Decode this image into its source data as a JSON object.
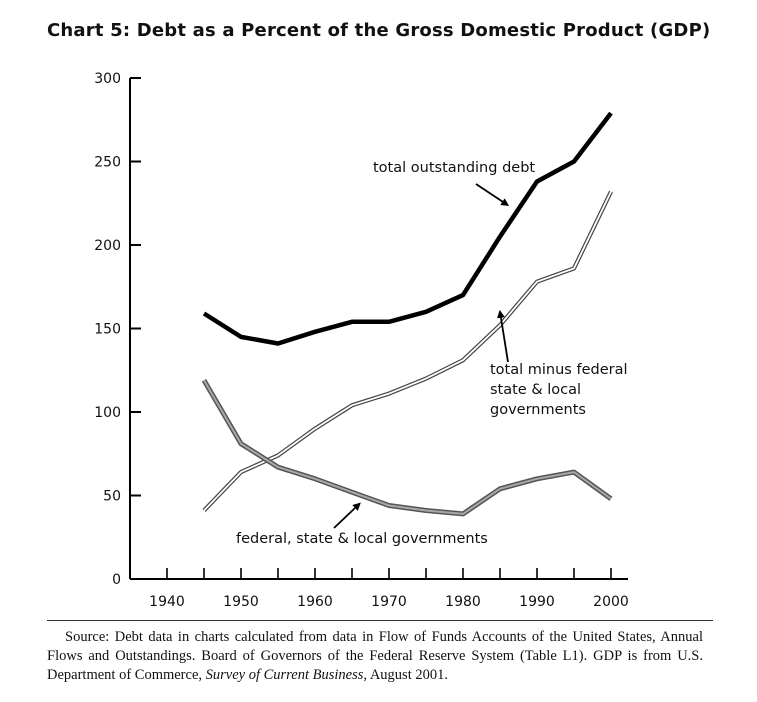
{
  "title": "Chart 5: Debt as a Percent of the Gross Domestic Product (GDP)",
  "source": {
    "text_before": "Source: Debt data in charts calculated from data in Flow of Funds Accounts of the United States, Annual Flows and Outstandings. Board of Governors of the Federal Reserve System (Table L1). GDP is from U.S. Department of Commerce, ",
    "italic": "Survey of Current Business",
    "text_after": ", August 2001."
  },
  "chart_data": {
    "type": "line",
    "title": "Chart 5: Debt as a Percent of the Gross Domestic Product (GDP)",
    "xlabel": "",
    "ylabel": "",
    "xlim": [
      1935,
      2000
    ],
    "ylim": [
      0,
      300
    ],
    "x_ticks": [
      1940,
      1950,
      1960,
      1970,
      1980,
      1990,
      2000
    ],
    "y_ticks": [
      0,
      50,
      100,
      150,
      200,
      250,
      300
    ],
    "x": [
      1945,
      1950,
      1955,
      1960,
      1965,
      1970,
      1975,
      1980,
      1985,
      1990,
      1995,
      2000
    ],
    "grid": false,
    "legend": "none",
    "series": [
      {
        "name": "total  outstanding debt",
        "style": "solid-thick",
        "color": "#000000",
        "values": [
          159,
          145,
          141,
          148,
          154,
          154,
          160,
          170,
          205,
          238,
          250,
          279
        ]
      },
      {
        "name": "total minus federal state & local governments",
        "style": "double-outline",
        "color": "#000000",
        "values": [
          41,
          64,
          74,
          90,
          104,
          111,
          120,
          131,
          152,
          178,
          186,
          232
        ]
      },
      {
        "name": "federal, state & local governments",
        "style": "gray-double",
        "color": "#777777",
        "values": [
          119,
          81,
          67,
          60,
          52,
          44,
          41,
          39,
          54,
          60,
          64,
          48
        ]
      }
    ],
    "annotations": [
      {
        "lines": [
          "total  outstanding debt"
        ],
        "series": 0,
        "arrow_to": {
          "x": 1986,
          "y": 224
        }
      },
      {
        "lines": [
          "total minus federal",
          "state & local",
          "governments"
        ],
        "series": 1,
        "arrow_to": {
          "x": 1985,
          "y": 160
        }
      },
      {
        "lines": [
          "federal, state & local governments"
        ],
        "series": 2,
        "arrow_to": {
          "x": 1966,
          "y": 45
        }
      }
    ]
  }
}
